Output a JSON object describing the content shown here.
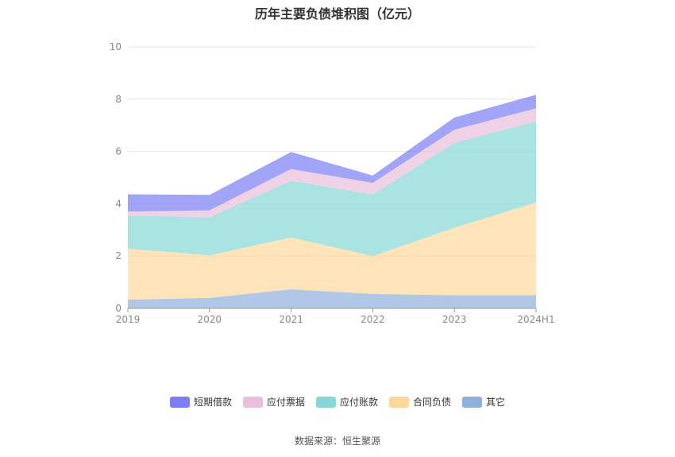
{
  "chart_data": {
    "type": "area",
    "stacked": true,
    "title": "历年主要负债堆积图（亿元）",
    "x": [
      "2019",
      "2020",
      "2021",
      "2022",
      "2023",
      "2024H1"
    ],
    "ylim": [
      0,
      10
    ],
    "yticks": [
      0,
      2,
      4,
      6,
      8,
      10
    ],
    "grid": true,
    "legend_position": "bottom",
    "series": [
      {
        "name": "其它",
        "color": "#8fb0dc",
        "values": [
          0.33,
          0.4,
          0.73,
          0.55,
          0.5,
          0.5
        ]
      },
      {
        "name": "合同负债",
        "color": "#fdd89a",
        "values": [
          1.95,
          1.63,
          1.98,
          1.45,
          2.58,
          3.55
        ]
      },
      {
        "name": "应付账款",
        "color": "#86d8d6",
        "values": [
          1.27,
          1.45,
          2.17,
          2.35,
          3.25,
          3.1
        ]
      },
      {
        "name": "应付票据",
        "color": "#e8bfdc",
        "values": [
          0.15,
          0.27,
          0.45,
          0.45,
          0.5,
          0.5
        ]
      },
      {
        "name": "短期借款",
        "color": "#7b7ef4",
        "values": [
          0.66,
          0.59,
          0.65,
          0.28,
          0.47,
          0.52
        ]
      }
    ]
  },
  "legend": {
    "items": [
      {
        "label": "短期借款",
        "color": "#7b7ef4"
      },
      {
        "label": "应付票据",
        "color": "#e8bfdc"
      },
      {
        "label": "应付账款",
        "color": "#86d8d6"
      },
      {
        "label": "合同负债",
        "color": "#fdd89a"
      },
      {
        "label": "其它",
        "color": "#8fb0dc"
      }
    ]
  },
  "source": "数据来源：恒生聚源"
}
